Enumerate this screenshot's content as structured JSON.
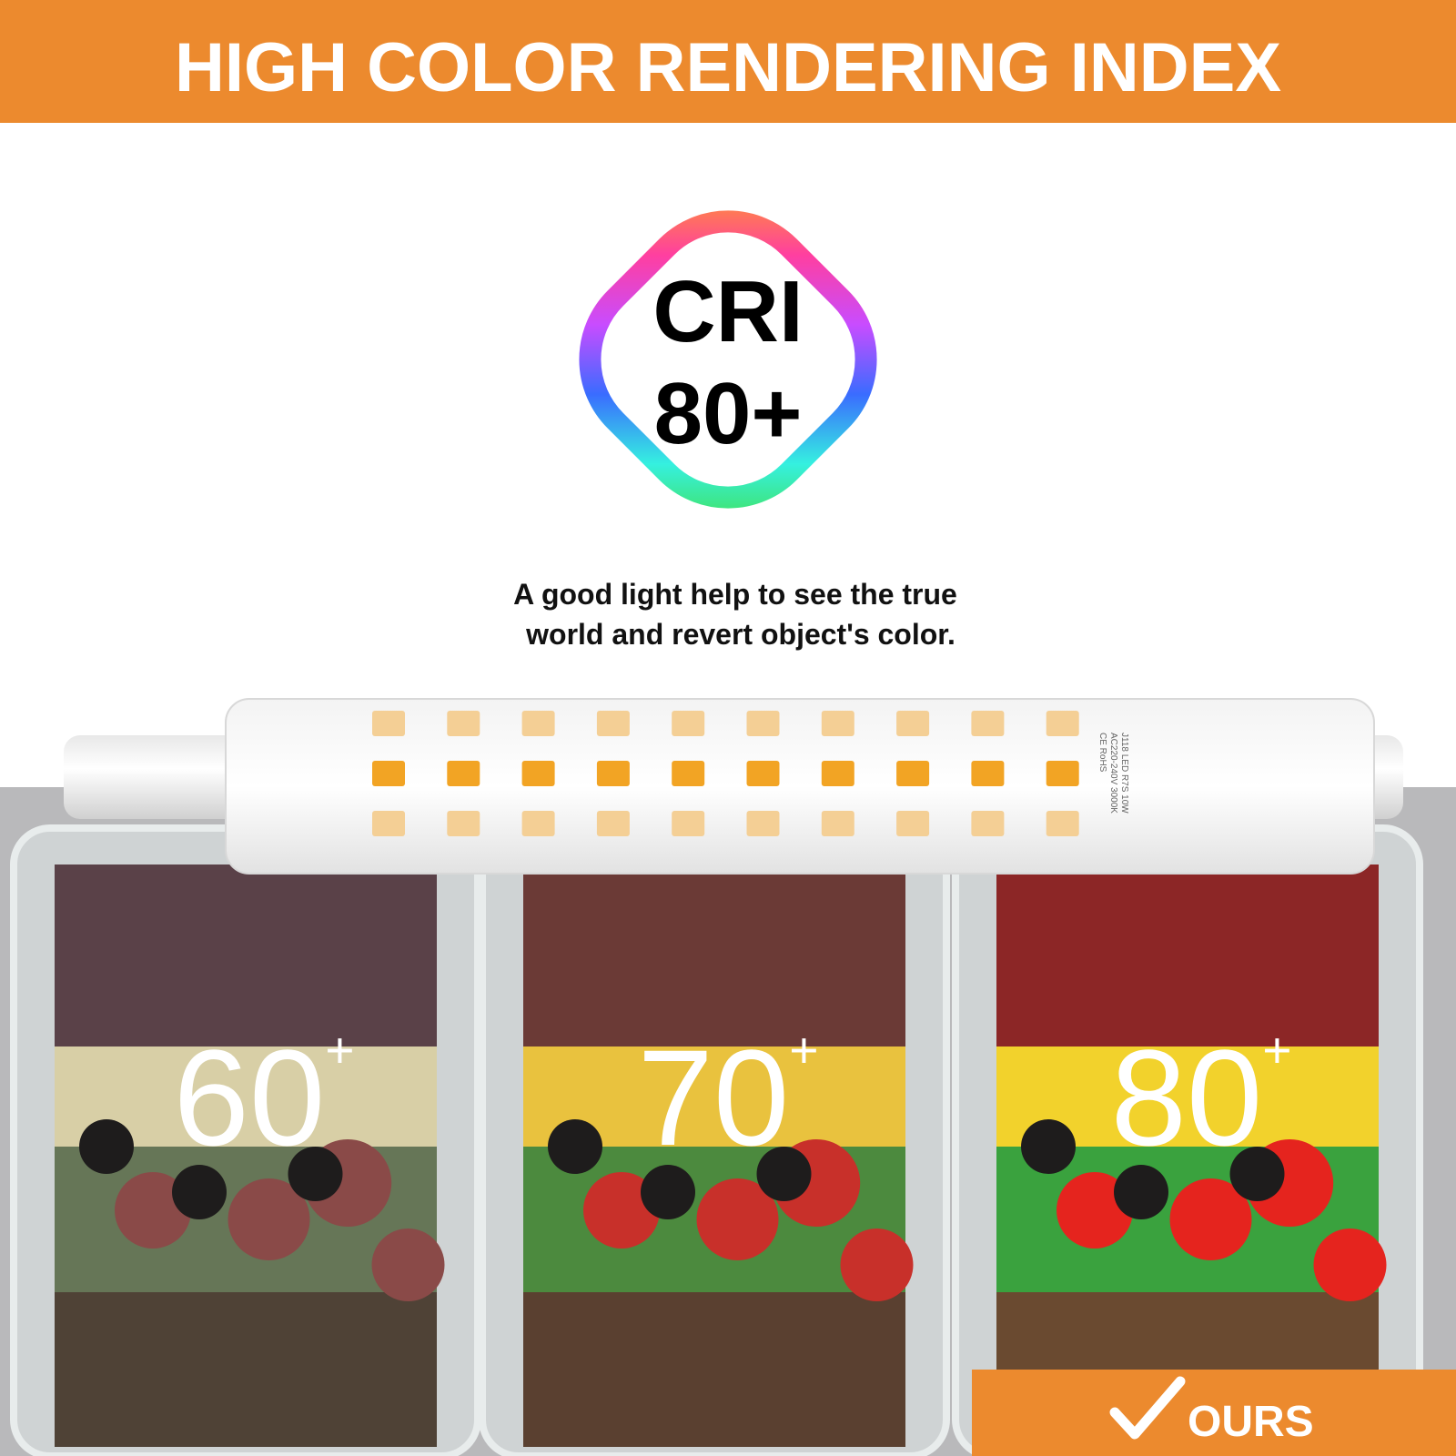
{
  "header": {
    "title": "HIGH COLOR RENDERING INDEX"
  },
  "badge": {
    "line1": "CRI",
    "line2": "80+"
  },
  "description": {
    "line1": "A good light help to see the true",
    "line2": "world and revert object's color."
  },
  "bulb": {
    "markings": [
      "J118 LED R7S 10W",
      "AC220-240V 3000K",
      "CE  RoHS"
    ]
  },
  "panels": [
    {
      "value": "60",
      "sup": "+"
    },
    {
      "value": "70",
      "sup": "+"
    },
    {
      "value": "80",
      "sup": "+"
    }
  ],
  "ours": {
    "label": "OURS"
  }
}
